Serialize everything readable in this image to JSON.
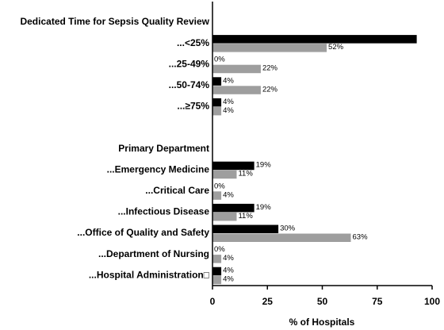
{
  "chart_data": {
    "type": "bar",
    "orientation": "horizontal",
    "categories": [
      "Dedicated Time for Sepsis Quality Review",
      "...<25%",
      "...25-49%",
      "...50-74%",
      "...≥75%",
      null,
      "Primary Department",
      "...Emergency Medicine",
      "...Critical Care",
      "...Infectious Disease",
      "...Office of Quality and Safety",
      "...Department of Nursing",
      "...Hospital Administration□"
    ],
    "series": [
      {
        "color": "#000000",
        "values": [
          null,
          93,
          0,
          4,
          4,
          null,
          null,
          19,
          0,
          19,
          30,
          0,
          4
        ],
        "value_labels": [
          null,
          null,
          "0%",
          "4%",
          "4%",
          null,
          null,
          "19%",
          "0%",
          "19%",
          "30%",
          "0%",
          "4%"
        ]
      },
      {
        "color": "#9e9e9e",
        "values": [
          null,
          52,
          22,
          22,
          4,
          null,
          null,
          11,
          4,
          11,
          63,
          4,
          4
        ],
        "value_labels": [
          null,
          "52%",
          "22%",
          "22%",
          "4%",
          null,
          null,
          "11%",
          "4%",
          "11%",
          "63%",
          "4%",
          "4%"
        ]
      }
    ],
    "xlabel": "% of Hospitals",
    "xlim": [
      0,
      100
    ],
    "xticks": [
      0,
      25,
      50,
      75,
      100
    ]
  }
}
